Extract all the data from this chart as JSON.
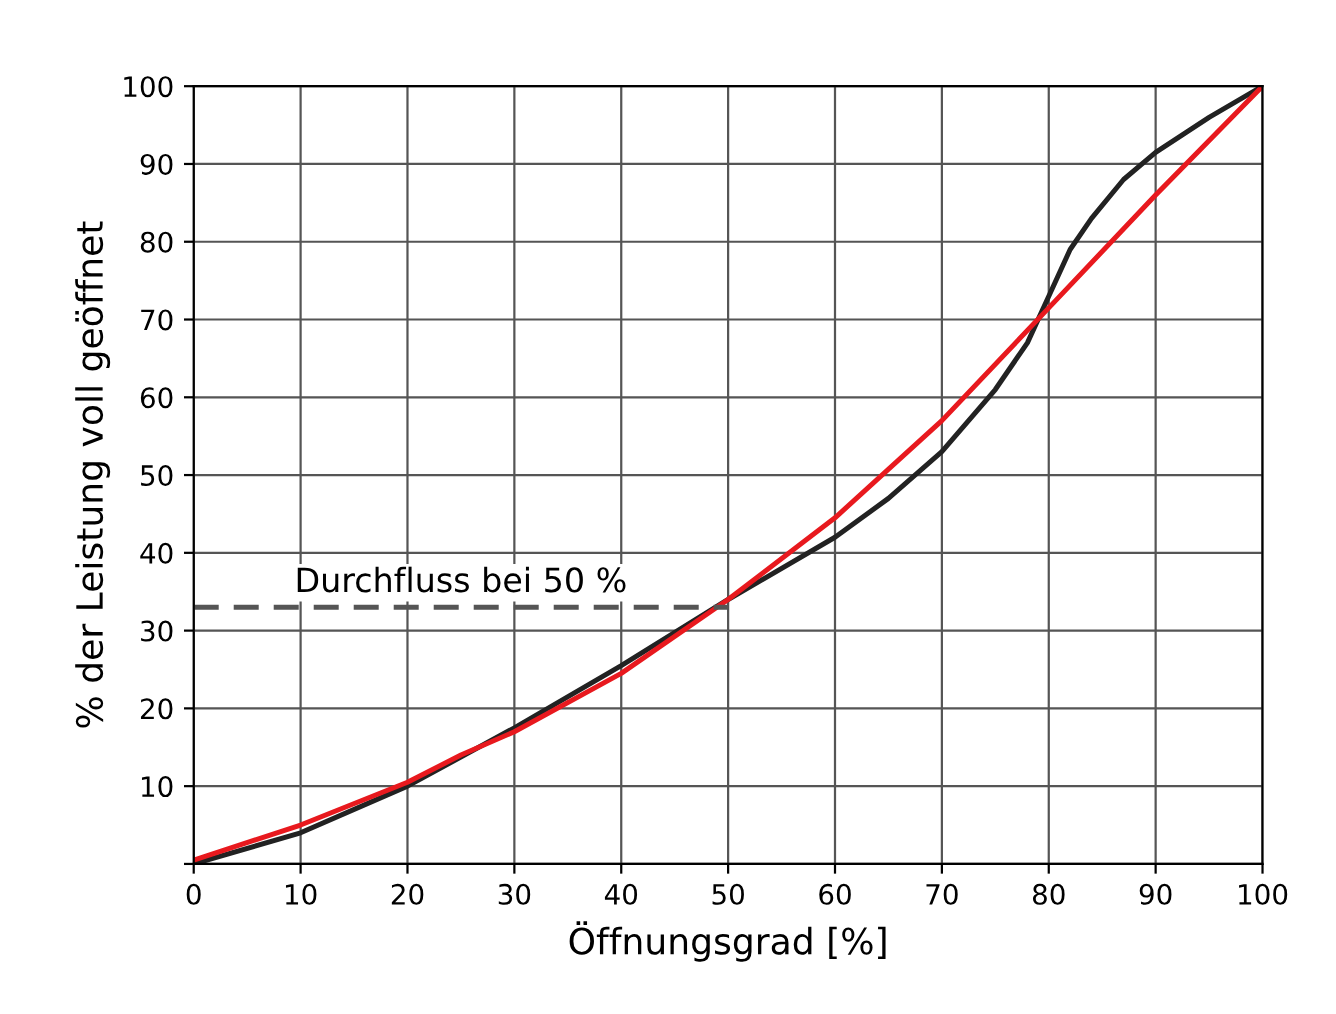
{
  "chart_data": {
    "type": "line",
    "xlabel": "Öffnungsgrad [%]",
    "ylabel": "% der Leistung voll geöffnet",
    "xlim": [
      0,
      100
    ],
    "ylim": [
      0,
      100
    ],
    "xticks": [
      0,
      10,
      20,
      30,
      40,
      50,
      60,
      70,
      80,
      90,
      100
    ],
    "yticks": [
      {
        "value": 0,
        "label": null
      },
      10,
      20,
      30,
      40,
      50,
      60,
      70,
      80,
      90,
      100
    ],
    "grid": true,
    "legend": false,
    "marker": "none",
    "series": [
      {
        "color": "#222222",
        "x": [
          0,
          10,
          20,
          30,
          40,
          50,
          60,
          65,
          70,
          75,
          78,
          80,
          82,
          84,
          87,
          90,
          95,
          100
        ],
        "values": [
          0,
          4,
          10,
          17.5,
          25.5,
          34,
          42,
          47,
          53,
          61,
          67,
          73,
          79,
          83,
          88,
          91.5,
          96,
          100
        ]
      },
      {
        "color": "#e8191e",
        "x": [
          0,
          10,
          20,
          25,
          30,
          40,
          50,
          60,
          70,
          80,
          90,
          100
        ],
        "values": [
          0.5,
          5,
          10.5,
          14,
          17,
          24.5,
          34,
          44.5,
          57,
          71.5,
          86,
          100
        ]
      },
      {
        "color": "#555555",
        "line_style": "dashed",
        "x": [
          0,
          50
        ],
        "values": [
          33,
          33
        ]
      }
    ],
    "annotations": [
      {
        "text": "Durchfluss bei 50 %",
        "x": 25,
        "y": 33
      }
    ]
  }
}
